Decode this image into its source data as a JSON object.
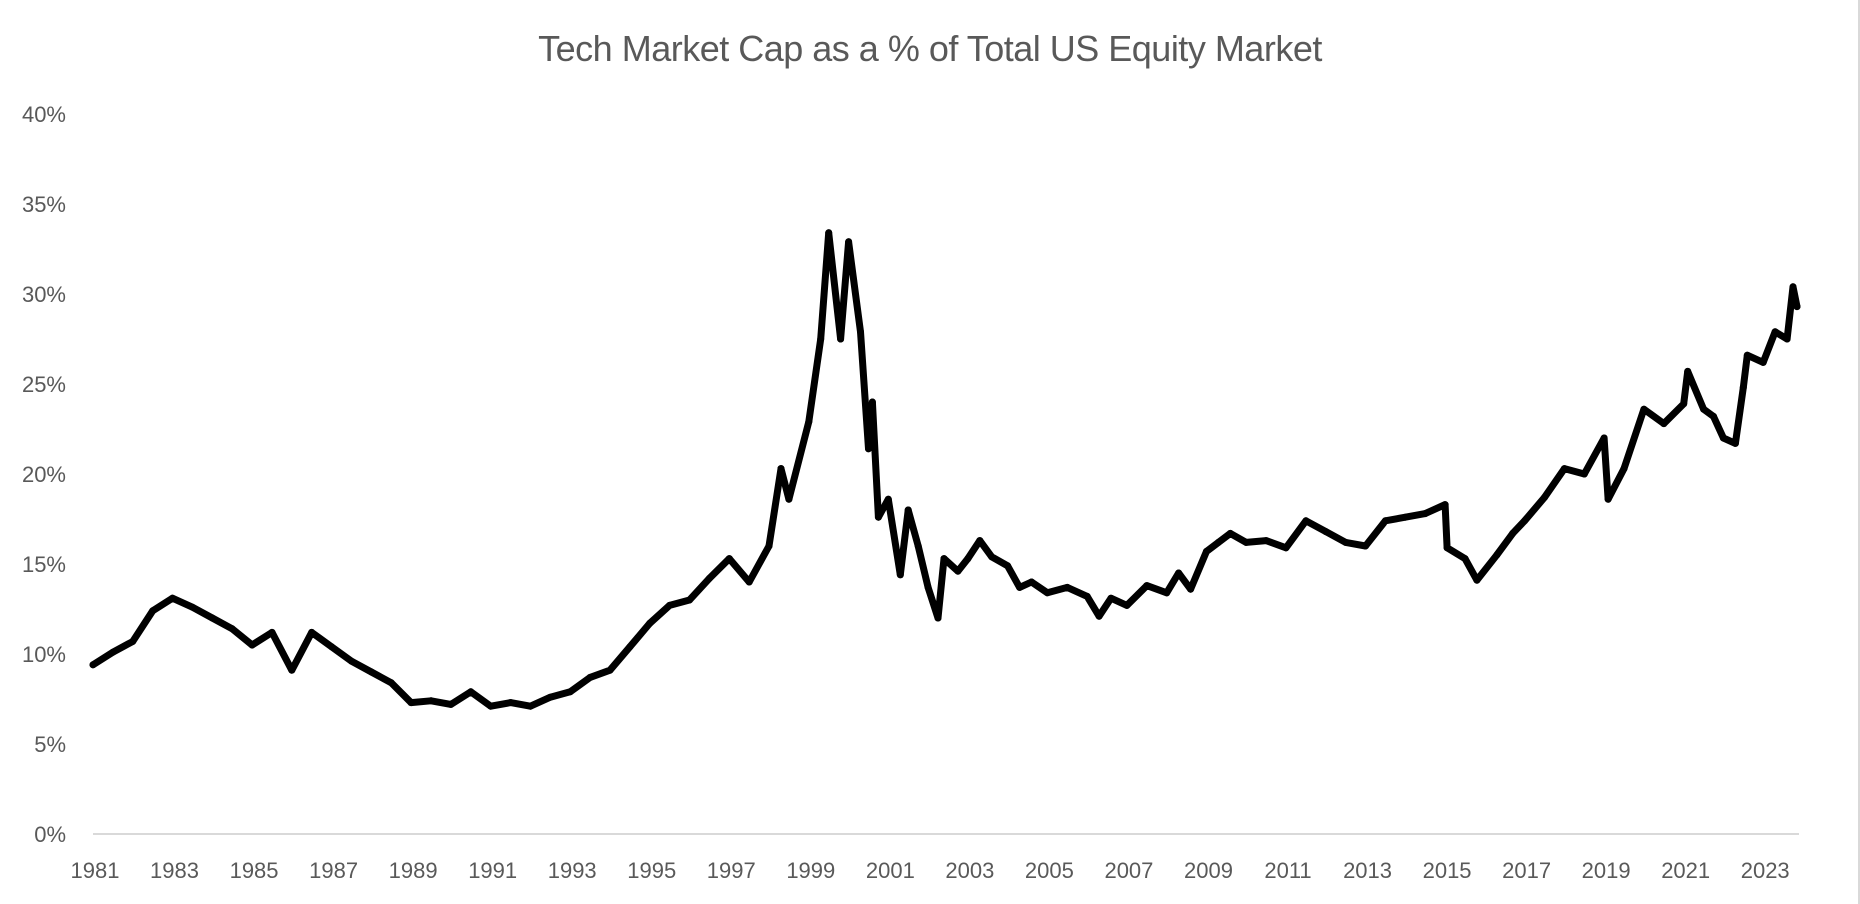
{
  "chart_data": {
    "type": "line",
    "title": "Tech Market Cap as a % of Total US Equity Market",
    "xlabel": "",
    "ylabel": "",
    "ylim": [
      0,
      40
    ],
    "xlim": [
      1981,
      2023.9
    ],
    "grid": false,
    "legend": "none",
    "y_ticks": [
      "0%",
      "5%",
      "10%",
      "15%",
      "20%",
      "25%",
      "30%",
      "35%",
      "40%"
    ],
    "y_tick_values": [
      0,
      5,
      10,
      15,
      20,
      25,
      30,
      35,
      40
    ],
    "x_ticks": [
      "1981",
      "1983",
      "1985",
      "1987",
      "1989",
      "1991",
      "1993",
      "1995",
      "1997",
      "1999",
      "2001",
      "2003",
      "2005",
      "2007",
      "2009",
      "2011",
      "2013",
      "2015",
      "2017",
      "2019",
      "2021",
      "2023"
    ],
    "line_color": "#000000",
    "series": [
      {
        "name": "Tech Market Cap %",
        "x": [
          1981.0,
          1981.5,
          1982.0,
          1982.5,
          1983.0,
          1983.5,
          1984.0,
          1984.5,
          1985.0,
          1985.5,
          1986.0,
          1986.5,
          1987.0,
          1987.5,
          1988.0,
          1988.5,
          1989.0,
          1989.5,
          1990.0,
          1990.5,
          1991.0,
          1991.5,
          1992.0,
          1992.5,
          1993.0,
          1993.5,
          1994.0,
          1994.5,
          1995.0,
          1995.5,
          1996.0,
          1996.5,
          1997.0,
          1997.5,
          1998.0,
          1998.3,
          1998.5,
          1999.0,
          1999.3,
          1999.5,
          1999.8,
          2000.0,
          2000.3,
          2000.5,
          2000.6,
          2000.75,
          2001.0,
          2001.3,
          2001.5,
          2001.75,
          2002.0,
          2002.25,
          2002.4,
          2002.75,
          2003.0,
          2003.3,
          2003.6,
          2004.0,
          2004.3,
          2004.6,
          2005.0,
          2005.5,
          2006.0,
          2006.3,
          2006.6,
          2007.0,
          2007.5,
          2008.0,
          2008.3,
          2008.6,
          2009.0,
          2009.3,
          2009.6,
          2010.0,
          2010.5,
          2011.0,
          2011.5,
          2012.0,
          2012.5,
          2013.0,
          2013.5,
          2014.0,
          2014.5,
          2015.0,
          2015.05,
          2015.5,
          2015.8,
          2016.3,
          2016.7,
          2017.0,
          2017.5,
          2018.0,
          2018.5,
          2019.0,
          2019.1,
          2019.5,
          2020.0,
          2020.5,
          2021.0,
          2021.1,
          2021.5,
          2021.75,
          2022.0,
          2022.3,
          2022.5,
          2022.6,
          2023.0,
          2023.3,
          2023.6,
          2023.75,
          2023.85
        ],
        "values": [
          9.4,
          10.1,
          10.7,
          12.4,
          13.1,
          12.6,
          12.0,
          11.4,
          10.5,
          11.2,
          9.1,
          11.2,
          10.4,
          9.6,
          9.0,
          8.4,
          7.3,
          7.4,
          7.2,
          7.9,
          7.1,
          7.3,
          7.1,
          7.6,
          7.9,
          8.7,
          9.1,
          10.4,
          11.7,
          12.7,
          13.0,
          14.2,
          15.3,
          14.0,
          16.0,
          20.3,
          18.6,
          22.9,
          27.5,
          33.4,
          27.5,
          32.9,
          27.9,
          21.4,
          24.0,
          17.6,
          18.6,
          14.4,
          18.0,
          16.0,
          13.7,
          12.0,
          15.3,
          14.6,
          15.3,
          16.3,
          15.4,
          14.9,
          13.7,
          14.0,
          13.4,
          13.7,
          13.2,
          12.1,
          13.1,
          12.7,
          13.8,
          13.4,
          14.5,
          13.6,
          15.7,
          16.2,
          16.7,
          16.2,
          16.3,
          15.9,
          17.4,
          16.8,
          16.2,
          16.0,
          17.4,
          17.6,
          17.8,
          18.3,
          15.9,
          15.3,
          14.1,
          15.5,
          16.7,
          17.4,
          18.7,
          20.3,
          20.0,
          22.0,
          18.6,
          20.3,
          23.6,
          22.8,
          23.9,
          25.7,
          23.6,
          23.2,
          22.0,
          21.7,
          24.8,
          26.6,
          26.2,
          27.9,
          27.5,
          30.4,
          29.3
        ]
      }
    ]
  }
}
